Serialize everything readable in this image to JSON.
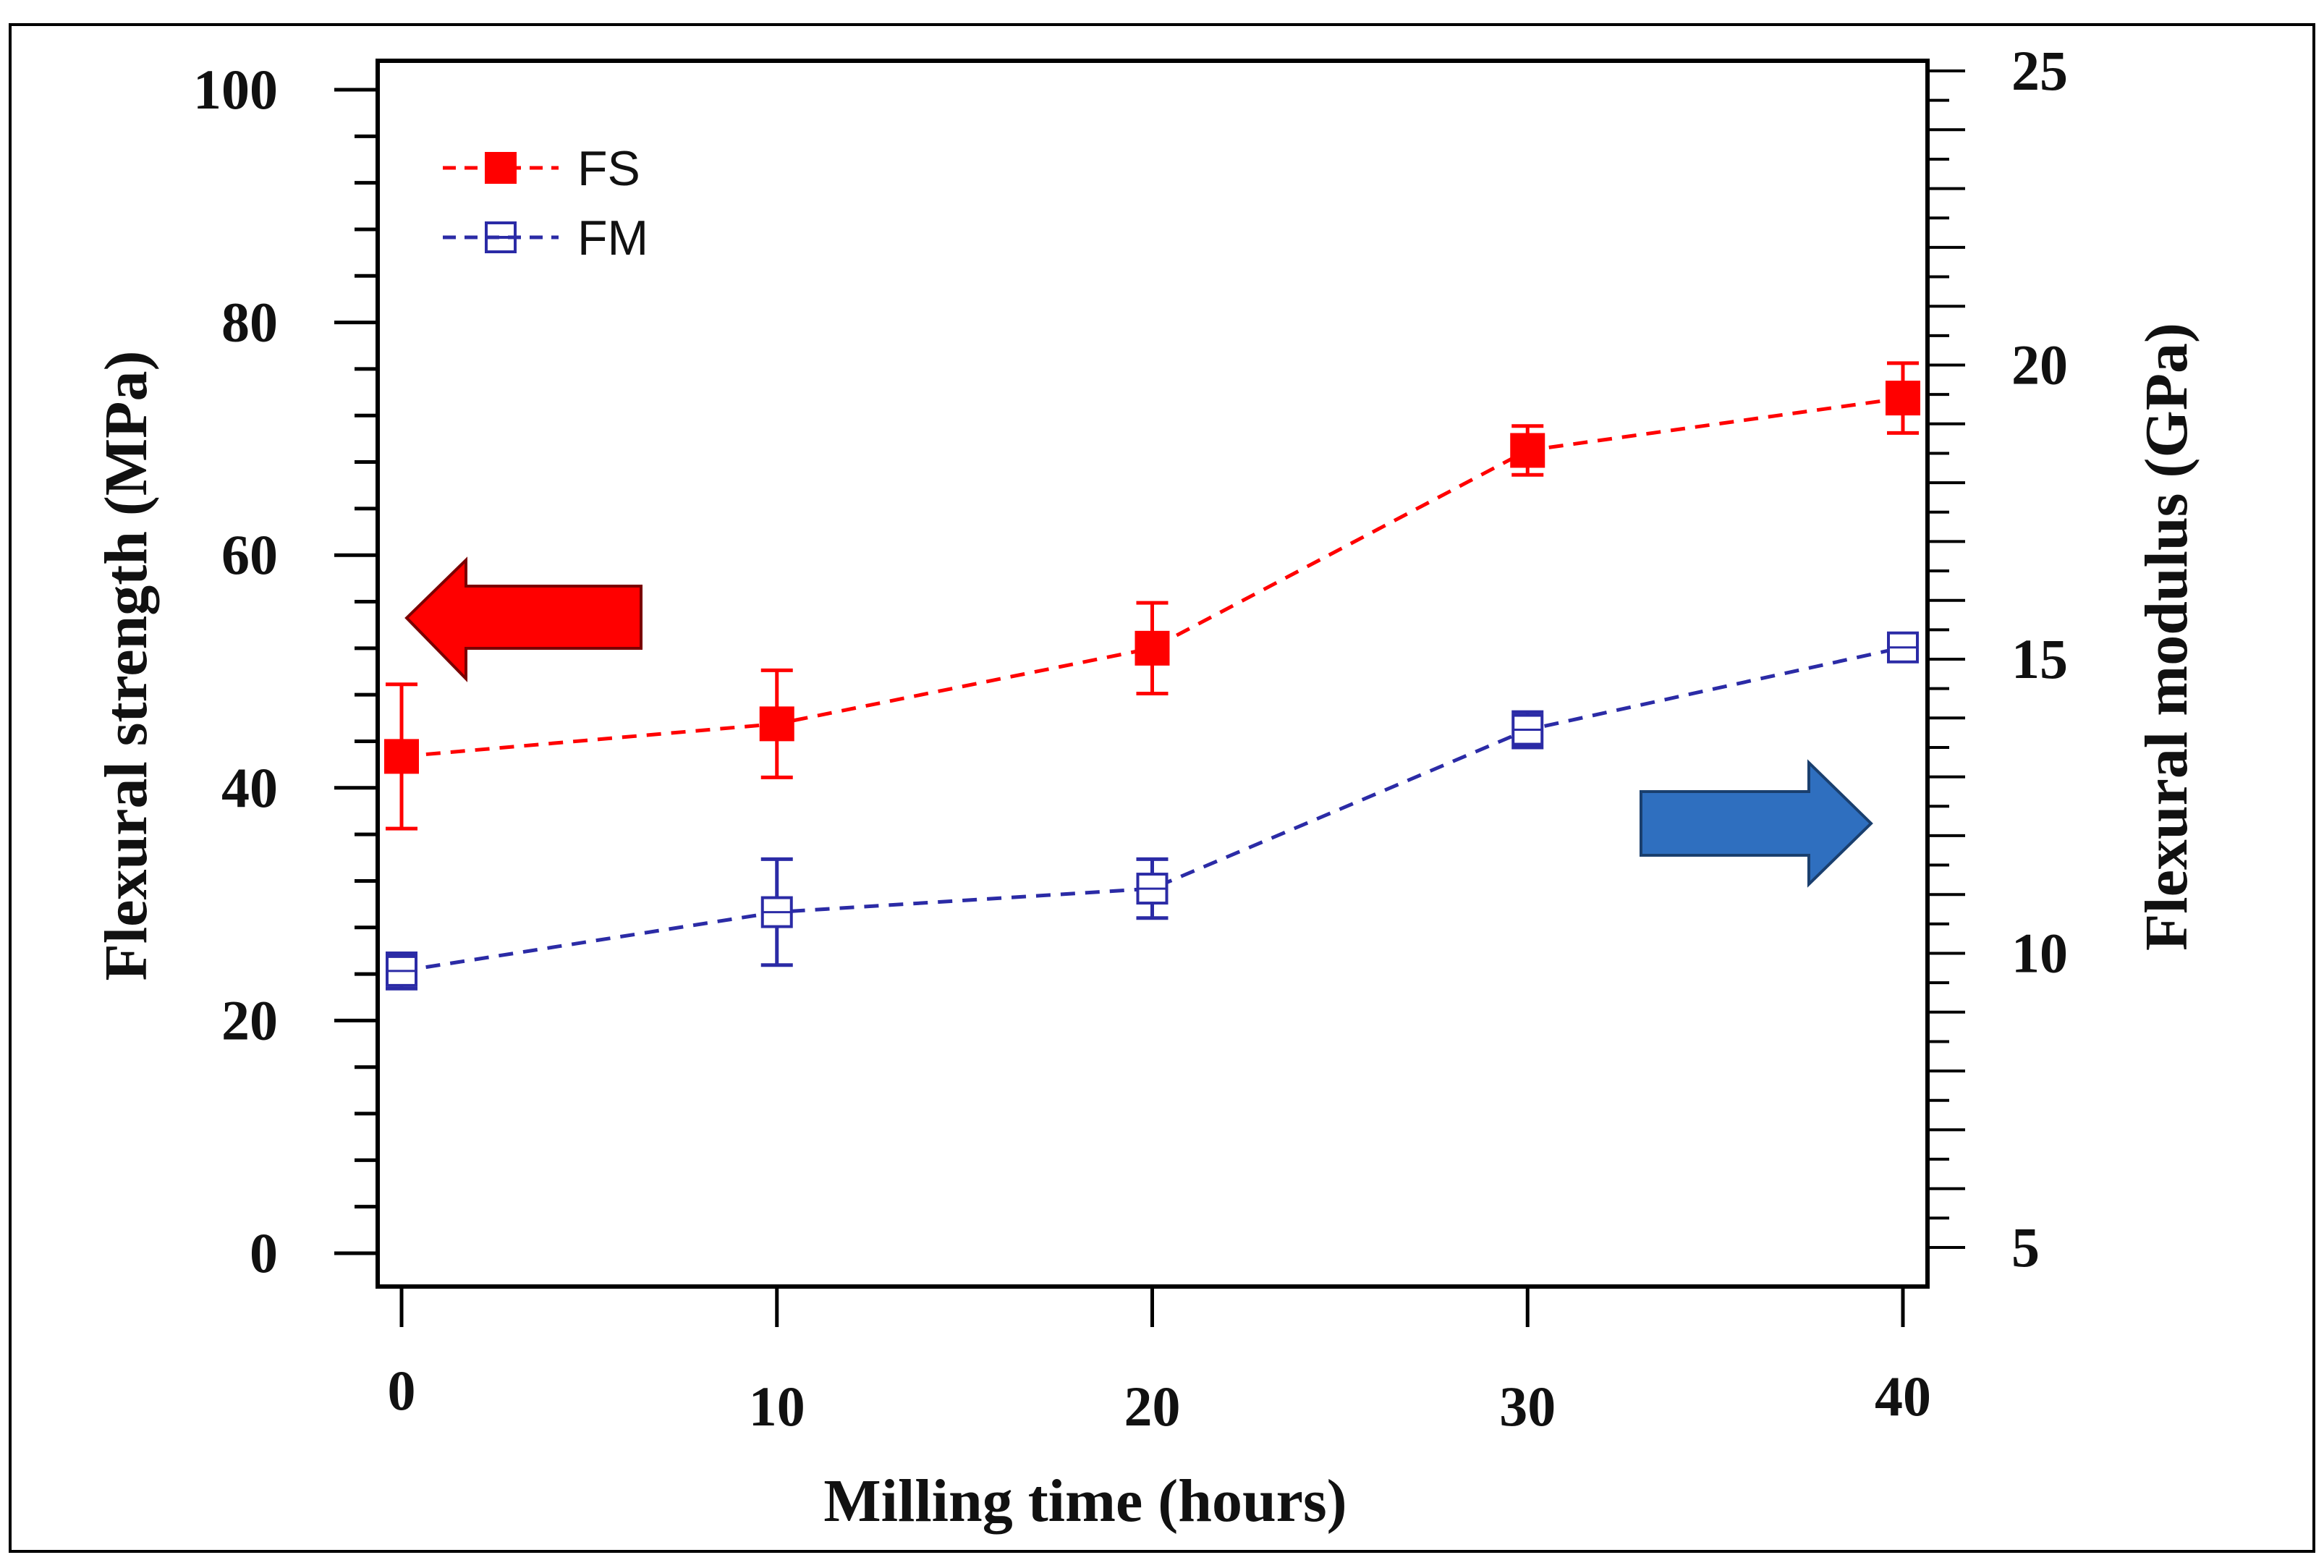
{
  "chart_data": {
    "type": "line",
    "xlabel": "Milling time (hours)",
    "ylabel": "Flexural strength  (MPa)",
    "y2label": "Flexural modulus (GPa)",
    "xlim": [
      0,
      40
    ],
    "ylim": [
      0,
      100
    ],
    "y2lim": [
      5,
      25
    ],
    "x_ticks": [
      0,
      10,
      20,
      30,
      40
    ],
    "y_ticks": [
      0,
      20,
      40,
      60,
      80,
      100
    ],
    "y2_ticks": [
      5,
      10,
      15,
      20,
      25
    ],
    "grid": false,
    "legend_position": "top-left",
    "x": [
      0,
      10,
      20,
      30,
      40
    ],
    "series": [
      {
        "name": "FS",
        "axis": "left",
        "values": [
          42.7,
          45.5,
          52.0,
          69.0,
          73.5
        ],
        "errors": [
          6.2,
          4.6,
          3.9,
          2.1,
          3.0
        ],
        "color": "#ff0000",
        "marker": "filled-square"
      },
      {
        "name": "FM",
        "axis": "right",
        "values": [
          9.7,
          10.7,
          11.1,
          13.8,
          15.2
        ],
        "errors": [
          0.3,
          0.9,
          0.5,
          0.3,
          0.1
        ],
        "color": "#2b2ba6",
        "marker": "open-square"
      }
    ],
    "annotations": [
      {
        "type": "arrow",
        "direction": "left",
        "color": "#ff0000",
        "points_to": "left axis"
      },
      {
        "type": "arrow",
        "direction": "right",
        "color": "#2f6fbf",
        "points_to": "right axis"
      }
    ]
  }
}
